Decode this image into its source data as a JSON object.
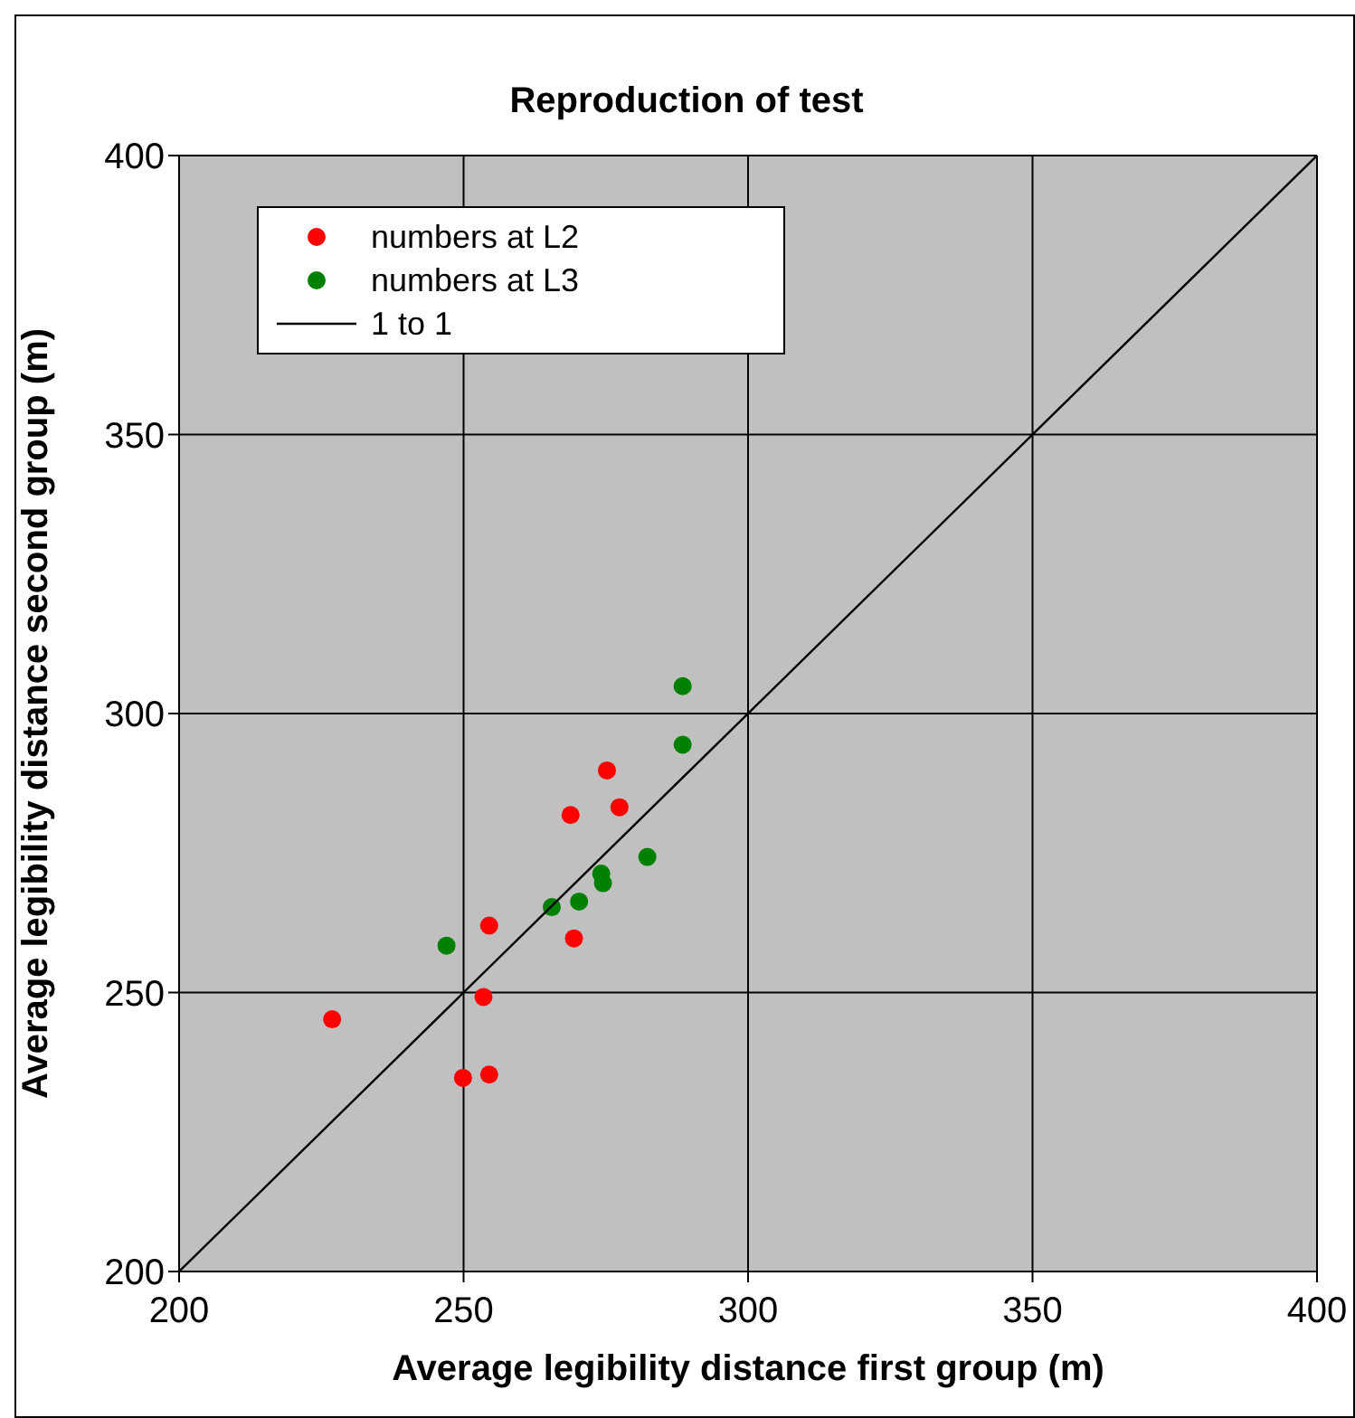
{
  "chart_data": {
    "type": "scatter",
    "title": "Reproduction of test",
    "xlabel": "Average legibility distance first group (m)",
    "ylabel": "Average legibility distance second group (m)",
    "xlim": [
      200,
      400
    ],
    "ylim": [
      200,
      400
    ],
    "xticks": [
      200,
      250,
      300,
      350,
      400
    ],
    "yticks": [
      200,
      250,
      300,
      350,
      400
    ],
    "grid": true,
    "legend": "top left",
    "marker": "circle",
    "series": [
      {
        "name": "numbers at L2",
        "color": "#ff0000",
        "x": [
          226.9,
          249.9,
          254.5,
          253.5,
          254.5,
          269.4,
          268.8,
          275.2,
          277.4
        ],
        "values": [
          245.2,
          234.7,
          235.3,
          249.2,
          262.0,
          259.7,
          281.8,
          289.8,
          283.2
        ]
      },
      {
        "name": "numbers at L3",
        "color": "#008000",
        "x": [
          247.0,
          265.5,
          270.3,
          274.2,
          274.5,
          282.3,
          288.5,
          288.5
        ],
        "values": [
          258.4,
          265.3,
          266.3,
          271.3,
          269.6,
          274.3,
          294.4,
          304.9
        ]
      },
      {
        "name": "1 to 1",
        "type": "line",
        "color": "#000000",
        "marker": "none",
        "x": [
          200,
          400
        ],
        "values": [
          200,
          400
        ]
      }
    ]
  }
}
